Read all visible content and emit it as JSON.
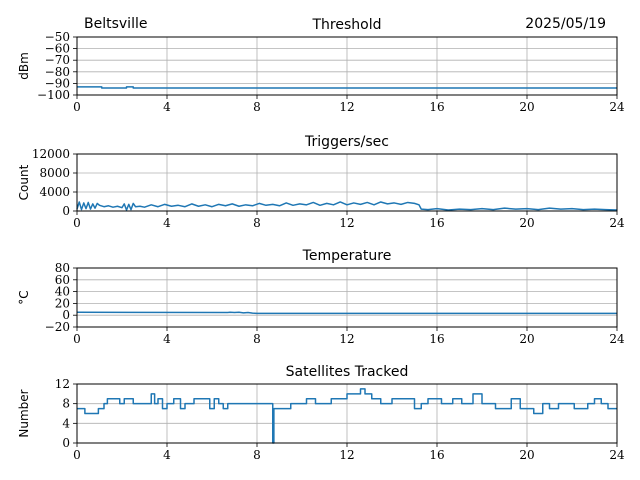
{
  "header": {
    "station": "Beltsville",
    "date": "2025/05/19"
  },
  "colors": {
    "series": "#1f77b4",
    "grid": "#b0b0b0",
    "axis": "#000000"
  },
  "chart_data": [
    {
      "type": "line",
      "title": "Threshold",
      "xlabel": "",
      "ylabel": "dBm",
      "xlim": [
        0,
        24
      ],
      "ylim": [
        -100,
        -50
      ],
      "xticks": [
        0,
        4,
        8,
        12,
        16,
        20,
        24
      ],
      "yticks": [
        -100,
        -90,
        -80,
        -70,
        -60,
        -50
      ],
      "grid": true,
      "x": [
        0,
        1.1,
        1.1,
        2.2,
        2.2,
        2.5,
        2.5,
        24
      ],
      "y": [
        -93,
        -93,
        -94,
        -94,
        -93,
        -93,
        -94,
        -94
      ]
    },
    {
      "type": "line",
      "title": "Triggers/sec",
      "xlabel": "",
      "ylabel": "Count",
      "xlim": [
        0,
        24
      ],
      "ylim": [
        0,
        12000
      ],
      "xticks": [
        0,
        4,
        8,
        12,
        16,
        20,
        24
      ],
      "yticks": [
        0,
        4000,
        8000,
        12000
      ],
      "grid": true,
      "x": [
        0,
        0.1,
        0.2,
        0.3,
        0.4,
        0.5,
        0.6,
        0.7,
        0.8,
        0.9,
        1.0,
        1.2,
        1.4,
        1.6,
        1.8,
        2.0,
        2.1,
        2.2,
        2.3,
        2.4,
        2.5,
        2.6,
        2.8,
        3.0,
        3.3,
        3.6,
        3.9,
        4.2,
        4.5,
        4.8,
        5.1,
        5.4,
        5.7,
        6.0,
        6.3,
        6.6,
        6.9,
        7.2,
        7.5,
        7.8,
        8.1,
        8.4,
        8.7,
        9.0,
        9.3,
        9.6,
        9.9,
        10.2,
        10.5,
        10.8,
        11.1,
        11.4,
        11.7,
        12.0,
        12.3,
        12.6,
        12.9,
        13.2,
        13.5,
        13.8,
        14.1,
        14.4,
        14.7,
        15.0,
        15.2,
        15.3,
        15.6,
        16.0,
        16.5,
        17.0,
        17.5,
        18.0,
        18.5,
        19.0,
        19.5,
        20.0,
        20.5,
        21.0,
        21.5,
        22.0,
        22.5,
        23.0,
        23.5,
        24.0
      ],
      "y": [
        400,
        1900,
        300,
        1700,
        500,
        1800,
        400,
        1500,
        600,
        1600,
        1200,
        900,
        1100,
        800,
        1000,
        700,
        1500,
        200,
        1400,
        300,
        1600,
        900,
        1000,
        800,
        1300,
        900,
        1400,
        1000,
        1200,
        900,
        1500,
        1000,
        1300,
        900,
        1400,
        1100,
        1500,
        1000,
        1300,
        1100,
        1600,
        1200,
        1400,
        1100,
        1700,
        1200,
        1500,
        1300,
        1800,
        1200,
        1600,
        1300,
        1900,
        1300,
        1700,
        1400,
        1800,
        1300,
        1900,
        1500,
        1700,
        1400,
        1800,
        1600,
        1300,
        400,
        300,
        500,
        200,
        400,
        300,
        500,
        300,
        600,
        400,
        500,
        300,
        600,
        400,
        500,
        300,
        400,
        300,
        200
      ]
    },
    {
      "type": "line",
      "title": "Temperature",
      "xlabel": "",
      "ylabel": "°C",
      "xlim": [
        0,
        24
      ],
      "ylim": [
        -20,
        80
      ],
      "xticks": [
        0,
        4,
        8,
        12,
        16,
        20,
        24
      ],
      "yticks": [
        -20,
        0,
        20,
        40,
        60,
        80
      ],
      "grid": true,
      "x": [
        0,
        6.7,
        6.8,
        7.0,
        7.2,
        7.4,
        7.6,
        7.8,
        8.0,
        24
      ],
      "y": [
        5,
        4.5,
        5,
        4.5,
        5,
        4,
        4.5,
        3.5,
        3,
        3
      ]
    },
    {
      "type": "line",
      "title": "Satellites Tracked",
      "xlabel": "",
      "ylabel": "Number",
      "xlim": [
        0,
        24
      ],
      "ylim": [
        0,
        12
      ],
      "xticks": [
        0,
        4,
        8,
        12,
        16,
        20,
        24
      ],
      "yticks": [
        0,
        4,
        8,
        12
      ],
      "grid": true,
      "x": [
        0,
        0.35,
        0.35,
        0.95,
        0.95,
        1.2,
        1.2,
        1.35,
        1.35,
        1.9,
        1.9,
        2.1,
        2.1,
        2.5,
        2.5,
        3.3,
        3.3,
        3.45,
        3.45,
        3.6,
        3.6,
        3.8,
        3.8,
        4.0,
        4.0,
        4.3,
        4.3,
        4.6,
        4.6,
        4.8,
        4.8,
        5.0,
        5.0,
        5.2,
        5.2,
        5.9,
        5.9,
        6.1,
        6.1,
        6.3,
        6.3,
        6.5,
        6.5,
        6.7,
        6.7,
        6.9,
        6.9,
        8.7,
        8.7,
        8.75,
        8.75,
        9.5,
        9.5,
        10.2,
        10.2,
        10.6,
        10.6,
        11.3,
        11.3,
        12.0,
        12.0,
        12.6,
        12.6,
        12.8,
        12.8,
        13.1,
        13.1,
        13.5,
        13.5,
        14.0,
        14.0,
        15.0,
        15.0,
        15.3,
        15.3,
        15.6,
        15.6,
        16.2,
        16.2,
        16.7,
        16.7,
        17.1,
        17.1,
        17.6,
        17.6,
        18.0,
        18.0,
        18.6,
        18.6,
        19.3,
        19.3,
        19.7,
        19.7,
        20.3,
        20.3,
        20.7,
        20.7,
        21.0,
        21.0,
        21.4,
        21.4,
        22.1,
        22.1,
        22.7,
        22.7,
        23.0,
        23.0,
        23.3,
        23.3,
        23.6,
        23.6,
        24.0
      ],
      "y": [
        7,
        7,
        6,
        6,
        7,
        7,
        8,
        8,
        9,
        9,
        8,
        8,
        9,
        9,
        8,
        8,
        10,
        10,
        8,
        8,
        9,
        9,
        7,
        7,
        8,
        8,
        9,
        9,
        7,
        7,
        8,
        8,
        8,
        8,
        9,
        9,
        7,
        7,
        9,
        9,
        8,
        8,
        7,
        7,
        8,
        8,
        8,
        8,
        0,
        0,
        7,
        7,
        8,
        8,
        9,
        9,
        8,
        8,
        9,
        9,
        10,
        10,
        11,
        11,
        10,
        10,
        9,
        9,
        8,
        8,
        9,
        9,
        7,
        7,
        8,
        8,
        9,
        9,
        8,
        8,
        9,
        9,
        8,
        8,
        10,
        10,
        8,
        8,
        7,
        7,
        9,
        9,
        7,
        7,
        6,
        6,
        8,
        8,
        7,
        7,
        8,
        8,
        7,
        7,
        8,
        8,
        9,
        9,
        8,
        8,
        7,
        7
      ]
    }
  ]
}
